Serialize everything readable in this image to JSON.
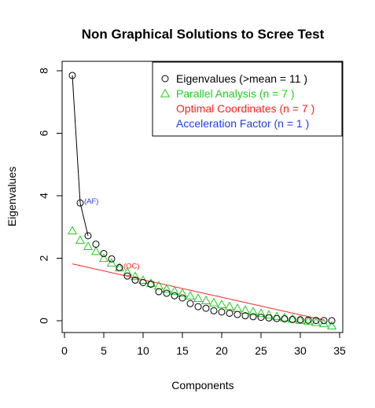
{
  "chart_data": {
    "type": "scatter",
    "title": "Non Graphical Solutions to Scree Test",
    "xlabel": "Components",
    "ylabel": "Eigenvalues",
    "xlim": [
      0,
      35
    ],
    "ylim": [
      -0.2,
      8.2
    ],
    "x_ticks": [
      0,
      5,
      10,
      15,
      20,
      25,
      30,
      35
    ],
    "y_ticks": [
      0,
      2,
      4,
      6,
      8
    ],
    "grid": false,
    "legend_position": "top-right",
    "legend": [
      {
        "label": "Eigenvalues (>mean  =  11 )",
        "color": "#000000",
        "marker": "circle"
      },
      {
        "label": "Parallel Analysis (n =  7 )",
        "color": "#22cc22",
        "marker": "triangle"
      },
      {
        "label": "Optimal Coordinates (n =  7 )",
        "color": "#ff2222",
        "marker": "none"
      },
      {
        "label": "Acceleration Factor (n =  1 )",
        "color": "#1f3fd8",
        "marker": "none"
      }
    ],
    "series": [
      {
        "name": "Eigenvalues",
        "color": "#000000",
        "marker": "circle",
        "x": [
          1,
          2,
          3,
          4,
          5,
          6,
          7,
          8,
          9,
          10,
          11,
          12,
          13,
          14,
          15,
          16,
          17,
          18,
          19,
          20,
          21,
          22,
          23,
          24,
          25,
          26,
          27,
          28,
          29,
          30,
          31,
          32,
          33,
          34
        ],
        "values": [
          7.85,
          3.77,
          2.72,
          2.45,
          2.15,
          1.98,
          1.7,
          1.43,
          1.3,
          1.22,
          1.17,
          0.93,
          0.88,
          0.8,
          0.73,
          0.55,
          0.45,
          0.4,
          0.32,
          0.28,
          0.24,
          0.2,
          0.16,
          0.13,
          0.11,
          0.09,
          0.07,
          0.06,
          0.04,
          0.03,
          0.02,
          0.01,
          0.005,
          0.002
        ]
      },
      {
        "name": "Parallel Analysis",
        "color": "#22cc22",
        "marker": "triangle",
        "x": [
          1,
          2,
          3,
          4,
          5,
          6,
          7,
          8,
          9,
          10,
          11,
          12,
          13,
          14,
          15,
          16,
          17,
          18,
          19,
          20,
          21,
          22,
          23,
          24,
          25,
          26,
          27,
          28,
          29,
          30,
          31,
          32,
          33,
          34
        ],
        "values": [
          2.88,
          2.58,
          2.38,
          2.22,
          2.0,
          1.85,
          1.7,
          1.55,
          1.42,
          1.3,
          1.2,
          1.12,
          1.02,
          0.95,
          0.88,
          0.8,
          0.72,
          0.65,
          0.58,
          0.52,
          0.46,
          0.4,
          0.34,
          0.29,
          0.24,
          0.19,
          0.14,
          0.1,
          0.06,
          0.02,
          -0.01,
          -0.05,
          -0.09,
          -0.16
        ]
      }
    ],
    "oc_line": {
      "name": "Optimal Coordinates",
      "color": "#ff2222",
      "x": [
        1,
        33
      ],
      "y": [
        1.82,
        0.02
      ]
    },
    "af_segment": {
      "x": [
        2,
        3
      ],
      "y": [
        3.77,
        2.72
      ]
    },
    "annotations": [
      {
        "text": "(AF)",
        "x": 2,
        "y": 3.77,
        "color": "#1f3fd8"
      },
      {
        "text": "(OC)",
        "x": 7,
        "y": 1.7,
        "color": "#ff2222"
      }
    ]
  }
}
